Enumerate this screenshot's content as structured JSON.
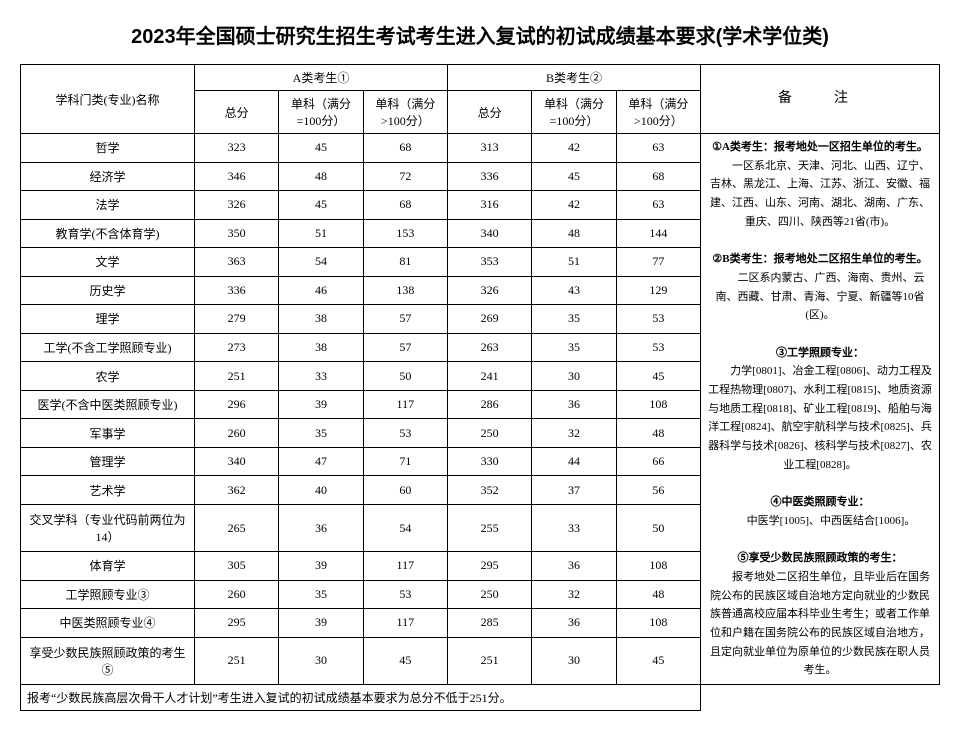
{
  "title": "2023年全国硕士研究生招生考试考生进入复试的初试成绩基本要求(学术学位类)",
  "headers": {
    "subject": "学科门类(专业)名称",
    "groupA": "A类考生①",
    "groupB": "B类考生②",
    "total": "总分",
    "single100": "单科（满分=100分）",
    "singleGt100": "单科（满分>100分）",
    "notes": "备　注"
  },
  "rows": [
    {
      "name": "哲学",
      "a": [
        323,
        45,
        68
      ],
      "b": [
        313,
        42,
        63
      ]
    },
    {
      "name": "经济学",
      "a": [
        346,
        48,
        72
      ],
      "b": [
        336,
        45,
        68
      ]
    },
    {
      "name": "法学",
      "a": [
        326,
        45,
        68
      ],
      "b": [
        316,
        42,
        63
      ]
    },
    {
      "name": "教育学(不含体育学)",
      "a": [
        350,
        51,
        153
      ],
      "b": [
        340,
        48,
        144
      ]
    },
    {
      "name": "文学",
      "a": [
        363,
        54,
        81
      ],
      "b": [
        353,
        51,
        77
      ]
    },
    {
      "name": "历史学",
      "a": [
        336,
        46,
        138
      ],
      "b": [
        326,
        43,
        129
      ]
    },
    {
      "name": "理学",
      "a": [
        279,
        38,
        57
      ],
      "b": [
        269,
        35,
        53
      ]
    },
    {
      "name": "工学(不含工学照顾专业)",
      "a": [
        273,
        38,
        57
      ],
      "b": [
        263,
        35,
        53
      ]
    },
    {
      "name": "农学",
      "a": [
        251,
        33,
        50
      ],
      "b": [
        241,
        30,
        45
      ]
    },
    {
      "name": "医学(不含中医类照顾专业)",
      "a": [
        296,
        39,
        117
      ],
      "b": [
        286,
        36,
        108
      ]
    },
    {
      "name": "军事学",
      "a": [
        260,
        35,
        53
      ],
      "b": [
        250,
        32,
        48
      ]
    },
    {
      "name": "管理学",
      "a": [
        340,
        47,
        71
      ],
      "b": [
        330,
        44,
        66
      ]
    },
    {
      "name": "艺术学",
      "a": [
        362,
        40,
        60
      ],
      "b": [
        352,
        37,
        56
      ]
    },
    {
      "name": "交叉学科（专业代码前两位为14）",
      "a": [
        265,
        36,
        54
      ],
      "b": [
        255,
        33,
        50
      ]
    },
    {
      "name": "体育学",
      "a": [
        305,
        39,
        117
      ],
      "b": [
        295,
        36,
        108
      ]
    },
    {
      "name": "工学照顾专业③",
      "a": [
        260,
        35,
        53
      ],
      "b": [
        250,
        32,
        48
      ]
    },
    {
      "name": "中医类照顾专业④",
      "a": [
        295,
        39,
        117
      ],
      "b": [
        285,
        36,
        108
      ]
    },
    {
      "name": "享受少数民族照顾政策的考生⑤",
      "a": [
        251,
        30,
        45
      ],
      "b": [
        251,
        30,
        45
      ]
    }
  ],
  "footer": "报考“少数民族高层次骨干人才计划”考生进入复试的初试成绩基本要求为总分不低于251分。",
  "notes": {
    "p1_head": "①A类考生：报考地处一区招生单位的考生。",
    "p1_body": "　　一区系北京、天津、河北、山西、辽宁、吉林、黑龙江、上海、江苏、浙江、安徽、福建、江西、山东、河南、湖北、湖南、广东、重庆、四川、陕西等21省(市)。",
    "p2_head": "②B类考生：报考地处二区招生单位的考生。",
    "p2_body": "　　二区系内蒙古、广西、海南、贵州、云南、西藏、甘肃、青海、宁夏、新疆等10省(区)。",
    "p3_head": "③工学照顾专业：",
    "p3_body": "　　力学[0801]、冶金工程[0806]、动力工程及工程热物理[0807]、水利工程[0815]、地质资源与地质工程[0818]、矿业工程[0819]、船舶与海洋工程[0824]、航空宇航科学与技术[0825]、兵器科学与技术[0826]、核科学与技术[0827]、农业工程[0828]。",
    "p4_head": "④中医类照顾专业：",
    "p4_body": "　　中医学[1005]、中西医结合[1006]。",
    "p5_head": "⑤享受少数民族照顾政策的考生：",
    "p5_body": "　　报考地处二区招生单位，且毕业后在国务院公布的民族区域自治地方定向就业的少数民族普通高校应届本科毕业生考生；或者工作单位和户籍在国务院公布的民族区域自治地方，且定向就业单位为原单位的少数民族在职人员考生。"
  }
}
